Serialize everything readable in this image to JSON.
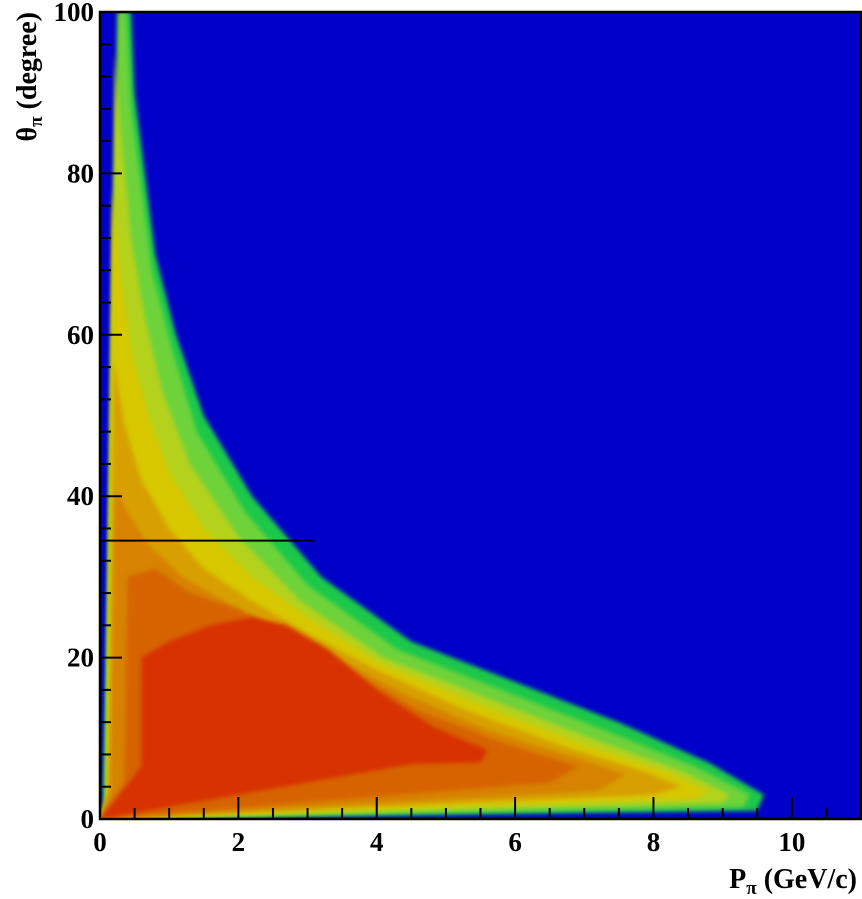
{
  "chart_data": {
    "type": "heatmap",
    "title": "",
    "xlabel": "P",
    "xlabel_subscript": "π",
    "xlabel_unit": " (GeV/c)",
    "ylabel": "θ",
    "ylabel_subscript": "π",
    "ylabel_unit": " (degree)",
    "xlim": [
      0,
      11
    ],
    "ylim": [
      0,
      100
    ],
    "x_ticks": [
      "0",
      "2",
      "4",
      "6",
      "8",
      "10"
    ],
    "y_ticks": [
      "0",
      "20",
      "40",
      "60",
      "80",
      "100"
    ],
    "background_color": "#0000c8",
    "contour_style": "filled contours, rainbow palette (blue low → red high)",
    "contour_levels": [
      {
        "level": 1,
        "color": "#1fc84a",
        "boundary": [
          [
            0.05,
            1
          ],
          [
            0.3,
            100
          ],
          [
            0.45,
            100
          ],
          [
            0.5,
            90
          ],
          [
            0.65,
            80
          ],
          [
            0.8,
            70
          ],
          [
            1.1,
            60
          ],
          [
            1.5,
            50
          ],
          [
            2.2,
            40
          ],
          [
            3.2,
            30
          ],
          [
            4.5,
            22
          ],
          [
            6.0,
            17
          ],
          [
            7.5,
            12
          ],
          [
            8.8,
            7
          ],
          [
            9.6,
            3
          ],
          [
            9.5,
            1
          ]
        ]
      },
      {
        "level": 2,
        "color": "#6ed23a",
        "boundary": [
          [
            0.07,
            1.5
          ],
          [
            0.25,
            100
          ],
          [
            0.38,
            100
          ],
          [
            0.45,
            88
          ],
          [
            0.6,
            78
          ],
          [
            0.75,
            68
          ],
          [
            1.05,
            58
          ],
          [
            1.4,
            48
          ],
          [
            2.1,
            38
          ],
          [
            3.0,
            29
          ],
          [
            4.3,
            21
          ],
          [
            5.8,
            16
          ],
          [
            7.3,
            11
          ],
          [
            8.6,
            6.5
          ],
          [
            9.4,
            3
          ],
          [
            9.3,
            1.5
          ]
        ]
      },
      {
        "level": 3,
        "color": "#b4d21e",
        "boundary": [
          [
            0.08,
            2
          ],
          [
            0.22,
            95
          ],
          [
            0.3,
            85
          ],
          [
            0.45,
            72
          ],
          [
            0.65,
            62
          ],
          [
            0.9,
            53
          ],
          [
            1.3,
            44
          ],
          [
            2.0,
            35
          ],
          [
            2.9,
            27
          ],
          [
            4.1,
            20
          ],
          [
            5.6,
            15
          ],
          [
            7.1,
            10
          ],
          [
            8.4,
            6
          ],
          [
            9.1,
            3
          ],
          [
            9.0,
            2
          ]
        ]
      },
      {
        "level": 4,
        "color": "#d7c800",
        "boundary": [
          [
            0.1,
            2.5
          ],
          [
            0.18,
            78
          ],
          [
            0.3,
            67
          ],
          [
            0.45,
            58
          ],
          [
            0.7,
            50
          ],
          [
            1.0,
            43
          ],
          [
            1.5,
            36
          ],
          [
            2.2,
            30
          ],
          [
            3.0,
            25
          ],
          [
            4.0,
            19.5
          ],
          [
            5.4,
            14.5
          ],
          [
            6.9,
            9.5
          ],
          [
            8.2,
            5.8
          ],
          [
            8.8,
            3.5
          ],
          [
            8.6,
            2.5
          ]
        ]
      },
      {
        "level": 5,
        "color": "#d7a000",
        "boundary": [
          [
            0.12,
            3
          ],
          [
            0.2,
            57
          ],
          [
            0.35,
            49
          ],
          [
            0.6,
            42
          ],
          [
            1.0,
            36
          ],
          [
            1.5,
            31
          ],
          [
            2.2,
            27
          ],
          [
            3.0,
            23
          ],
          [
            4.0,
            18.5
          ],
          [
            5.2,
            13.8
          ],
          [
            6.7,
            9
          ],
          [
            7.9,
            5.8
          ],
          [
            8.4,
            4
          ],
          [
            8.0,
            3
          ]
        ]
      },
      {
        "level": 6,
        "color": "#d78200",
        "boundary": [
          [
            0.15,
            3.5
          ],
          [
            0.22,
            41
          ],
          [
            0.4,
            38
          ],
          [
            0.7,
            34
          ],
          [
            1.2,
            30
          ],
          [
            1.8,
            27
          ],
          [
            2.6,
            23.5
          ],
          [
            3.4,
            20
          ],
          [
            4.4,
            15.5
          ],
          [
            5.6,
            11
          ],
          [
            6.9,
            7.5
          ],
          [
            7.6,
            5.5
          ],
          [
            7.2,
            3.5
          ]
        ]
      },
      {
        "level": 7,
        "color": "#d76400",
        "boundary": [
          [
            0.35,
            4.5
          ],
          [
            0.4,
            30
          ],
          [
            0.8,
            31
          ],
          [
            1.3,
            28
          ],
          [
            2.0,
            26
          ],
          [
            2.8,
            22
          ],
          [
            3.6,
            18.5
          ],
          [
            4.6,
            13.5
          ],
          [
            5.8,
            9.5
          ],
          [
            6.9,
            6.5
          ],
          [
            6.5,
            4.5
          ]
        ]
      },
      {
        "level": 8,
        "color": "#d73200",
        "boundary": [
          [
            0.6,
            6.5
          ],
          [
            0.6,
            20
          ],
          [
            1.0,
            22
          ],
          [
            1.6,
            24
          ],
          [
            2.2,
            25
          ],
          [
            2.7,
            24
          ],
          [
            3.3,
            21
          ],
          [
            4.0,
            16
          ],
          [
            4.8,
            11.5
          ],
          [
            5.6,
            8.5
          ],
          [
            5.5,
            7
          ],
          [
            4.5,
            6.8
          ]
        ]
      }
    ],
    "reference_line": {
      "x0": 0,
      "x1": 3.1,
      "y": 34.5,
      "color": "#000000"
    }
  }
}
